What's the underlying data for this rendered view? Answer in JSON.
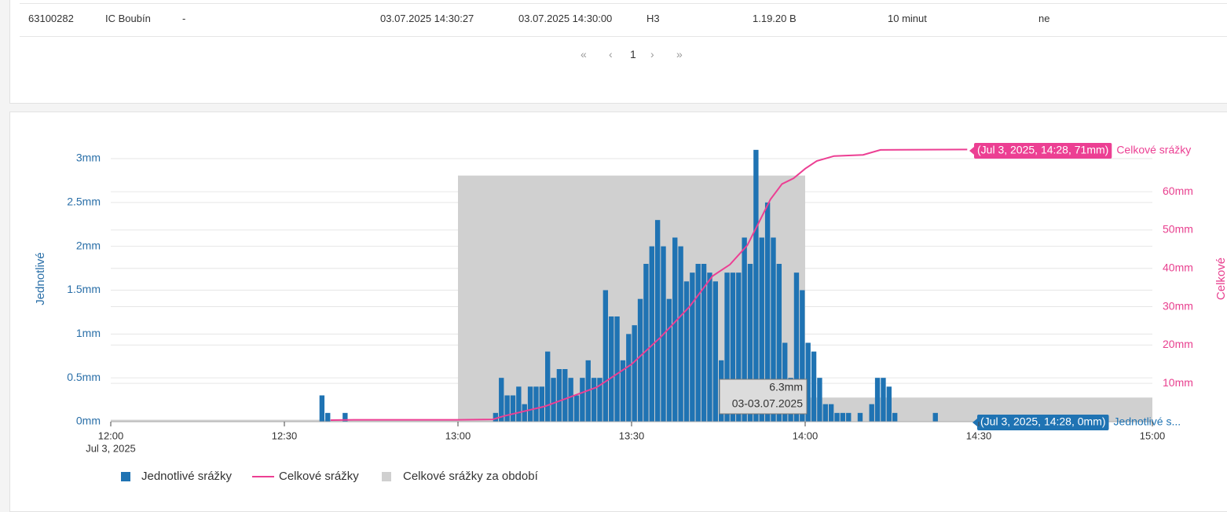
{
  "table": {
    "rows": [
      [
        "63100282",
        "IC Boubín",
        "-",
        "03.07.2025 14:30:27",
        "03.07.2025 14:30:00",
        "H3",
        "1.19.20 B",
        "10 minut",
        "ne"
      ]
    ]
  },
  "pagination": {
    "first": "«",
    "prev": "‹",
    "page": "1",
    "next": "›",
    "last": "»"
  },
  "chart_data": {
    "type": "bar",
    "x_date_label": "Jul 3, 2025",
    "ylabel": "Jednotlivé",
    "y2label": "Celkové",
    "xlim": [
      "12:00",
      "15:00"
    ],
    "xticks": [
      "12:00",
      "12:30",
      "13:00",
      "13:30",
      "14:00",
      "14:30",
      "15:00"
    ],
    "ylim": [
      0,
      3.2
    ],
    "yticks": [
      {
        "value": 0,
        "label": "0mm"
      },
      {
        "value": 0.5,
        "label": "0.5mm"
      },
      {
        "value": 1,
        "label": "1mm"
      },
      {
        "value": 1.5,
        "label": "1.5mm"
      },
      {
        "value": 2,
        "label": "2mm"
      },
      {
        "value": 2.5,
        "label": "2.5mm"
      },
      {
        "value": 3,
        "label": "3mm"
      }
    ],
    "y2lim": [
      0,
      73.2
    ],
    "y2ticks": [
      {
        "value": 10,
        "label": "10mm"
      },
      {
        "value": 20,
        "label": "20mm"
      },
      {
        "value": 30,
        "label": "30mm"
      },
      {
        "value": 40,
        "label": "40mm"
      },
      {
        "value": 50,
        "label": "50mm"
      },
      {
        "value": 60,
        "label": "60mm"
      }
    ],
    "grid": true,
    "series": [
      {
        "name": "Jednotlivé srážky",
        "type": "bar",
        "color": "#1f73b3",
        "x": [
          "12:36",
          "12:37",
          "12:40",
          "13:06",
          "13:07",
          "13:08",
          "13:09",
          "13:10",
          "13:11",
          "13:12",
          "13:13",
          "13:14",
          "13:15",
          "13:16",
          "13:17",
          "13:18",
          "13:19",
          "13:20",
          "13:21",
          "13:22",
          "13:23",
          "13:24",
          "13:25",
          "13:26",
          "13:27",
          "13:28",
          "13:29",
          "13:30",
          "13:31",
          "13:32",
          "13:33",
          "13:34",
          "13:35",
          "13:36",
          "13:37",
          "13:38",
          "13:39",
          "13:40",
          "13:41",
          "13:42",
          "13:43",
          "13:44",
          "13:45",
          "13:46",
          "13:47",
          "13:48",
          "13:49",
          "13:50",
          "13:51",
          "13:52",
          "13:53",
          "13:54",
          "13:55",
          "13:56",
          "13:57",
          "13:58",
          "13:59",
          "14:00",
          "14:01",
          "14:02",
          "14:03",
          "14:04",
          "14:05",
          "14:06",
          "14:07",
          "14:09",
          "14:11",
          "14:12",
          "14:13",
          "14:14",
          "14:15",
          "14:22"
        ],
        "values": [
          0.3,
          0.1,
          0.1,
          0.1,
          0.5,
          0.3,
          0.3,
          0.4,
          0.2,
          0.4,
          0.4,
          0.4,
          0.8,
          0.5,
          0.6,
          0.6,
          0.5,
          0.3,
          0.5,
          0.7,
          0.5,
          0.5,
          1.5,
          1.2,
          1.2,
          0.7,
          1.0,
          1.1,
          1.4,
          1.8,
          2.0,
          2.3,
          2.0,
          1.4,
          2.1,
          2.0,
          1.6,
          1.7,
          1.8,
          1.8,
          1.7,
          1.6,
          0.7,
          1.7,
          1.7,
          1.7,
          2.1,
          1.8,
          3.1,
          2.1,
          2.5,
          2.1,
          1.8,
          0.9,
          0.5,
          1.7,
          1.5,
          0.9,
          0.8,
          0.5,
          0.2,
          0.2,
          0.1,
          0.1,
          0.1,
          0.1,
          0.2,
          0.5,
          0.5,
          0.4,
          0.1,
          0.1
        ]
      },
      {
        "name": "Celkové srážky",
        "type": "line",
        "axis": "y2",
        "color": "#ec3f93",
        "x": [
          "12:38",
          "12:42",
          "13:00",
          "13:06",
          "13:08",
          "13:15",
          "13:24",
          "13:30",
          "13:35",
          "13:40",
          "13:44",
          "13:47",
          "13:50",
          "13:52",
          "13:54",
          "13:56",
          "13:58",
          "14:00",
          "14:02",
          "14:05",
          "14:10",
          "14:13",
          "14:28"
        ],
        "values": [
          0.4,
          0.5,
          0.5,
          0.6,
          1.5,
          4,
          9,
          15,
          22,
          30,
          38,
          41,
          46,
          52,
          58,
          62,
          63.5,
          66,
          68,
          69.3,
          69.6,
          70.9,
          71
        ]
      },
      {
        "name": "Celkové srážky za období",
        "type": "step",
        "axis": "y2",
        "color": "#d0d0d0",
        "x": [
          "12:00",
          "13:00",
          "14:00"
        ],
        "values": [
          0.5,
          64.2,
          6.3
        ]
      }
    ],
    "annotations": [
      {
        "text": "(Jul 3, 2025, 14:28, 71mm)",
        "series_label": "Celkové srážky"
      },
      {
        "text": "(Jul 3, 2025, 14:28, 0mm)",
        "series_label": "Jednotlivé s..."
      }
    ],
    "tooltip": {
      "value_label": "6.3mm",
      "date": "03-03.07.2025"
    }
  }
}
